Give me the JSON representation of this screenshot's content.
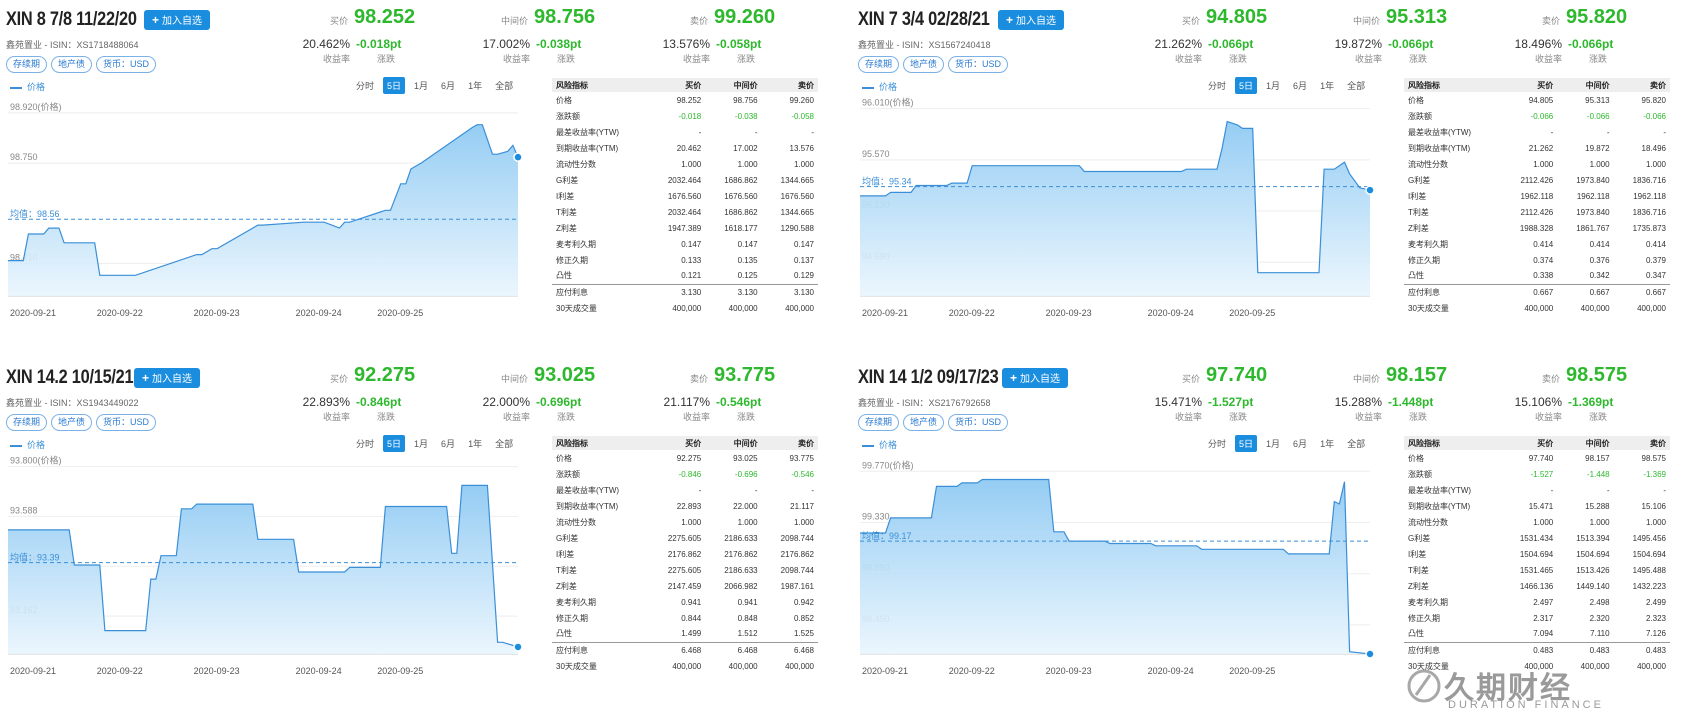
{
  "panels": [
    {
      "title": "XIN 8 7/8 11/22/20",
      "add_button": "加入自选",
      "issuer_isin": "鑫苑置业 - ISIN：XS1718488064",
      "tags": [
        "存续期",
        "地产债",
        "货币：USD"
      ],
      "quotes": [
        {
          "label": "买价",
          "price": "98.252",
          "yield": "20.462%",
          "yield_label": "收益率",
          "change": "-0.018pt",
          "change_label": "涨跌"
        },
        {
          "label": "中间价",
          "price": "98.756",
          "yield": "17.002%",
          "yield_label": "收益率",
          "change": "-0.038pt",
          "change_label": "涨跌"
        },
        {
          "label": "卖价",
          "price": "99.260",
          "yield": "13.576%",
          "yield_label": "收益率",
          "change": "-0.058pt",
          "change_label": "涨跌"
        }
      ],
      "legend": "价格",
      "ranges": [
        "分时",
        "5日",
        "1月",
        "6月",
        "1年",
        "全部"
      ],
      "active_range": "5日",
      "table": {
        "headers": [
          "风险指标",
          "买价",
          "中间价",
          "卖价"
        ],
        "rows": [
          [
            "价格",
            "98.252",
            "98.756",
            "99.260"
          ],
          [
            "涨跌额",
            "-0.018",
            "-0.038",
            "-0.058"
          ],
          [
            "最差收益率(YTW)",
            "-",
            "-",
            "-"
          ],
          [
            "到期收益率(YTM)",
            "20.462",
            "17.002",
            "13.576"
          ],
          [
            "流动性分数",
            "1.000",
            "1.000",
            "1.000"
          ],
          [
            "G利差",
            "2032.464",
            "1686.862",
            "1344.665"
          ],
          [
            "I利差",
            "1676.560",
            "1676.560",
            "1676.560"
          ],
          [
            "T利差",
            "2032.464",
            "1686.862",
            "1344.665"
          ],
          [
            "Z利差",
            "1947.389",
            "1618.177",
            "1290.588"
          ],
          [
            "麦考利久期",
            "0.147",
            "0.147",
            "0.147"
          ],
          [
            "修正久期",
            "0.133",
            "0.135",
            "0.137"
          ],
          [
            "凸性",
            "0.121",
            "0.125",
            "0.129"
          ],
          [
            "应付利息",
            "3.130",
            "3.130",
            "3.130"
          ],
          [
            "30天成交量",
            "400,000",
            "400,000",
            "400,000"
          ]
        ]
      }
    },
    {
      "title": "XIN 7 3/4 02/28/21",
      "add_button": "加入自选",
      "issuer_isin": "鑫苑置业 - ISIN：XS1567240418",
      "tags": [
        "存续期",
        "地产债",
        "货币：USD"
      ],
      "quotes": [
        {
          "label": "买价",
          "price": "94.805",
          "yield": "21.262%",
          "yield_label": "收益率",
          "change": "-0.066pt",
          "change_label": "涨跌"
        },
        {
          "label": "中间价",
          "price": "95.313",
          "yield": "19.872%",
          "yield_label": "收益率",
          "change": "-0.066pt",
          "change_label": "涨跌"
        },
        {
          "label": "卖价",
          "price": "95.820",
          "yield": "18.496%",
          "yield_label": "收益率",
          "change": "-0.066pt",
          "change_label": "涨跌"
        }
      ],
      "legend": "价格",
      "ranges": [
        "分时",
        "5日",
        "1月",
        "6月",
        "1年",
        "全部"
      ],
      "active_range": "5日",
      "table": {
        "headers": [
          "风险指标",
          "买价",
          "中间价",
          "卖价"
        ],
        "rows": [
          [
            "价格",
            "94.805",
            "95.313",
            "95.820"
          ],
          [
            "涨跌额",
            "-0.066",
            "-0.066",
            "-0.066"
          ],
          [
            "最差收益率(YTW)",
            "-",
            "-",
            "-"
          ],
          [
            "到期收益率(YTM)",
            "21.262",
            "19.872",
            "18.496"
          ],
          [
            "流动性分数",
            "1.000",
            "1.000",
            "1.000"
          ],
          [
            "G利差",
            "2112.426",
            "1973.840",
            "1836.716"
          ],
          [
            "I利差",
            "1962.118",
            "1962.118",
            "1962.118"
          ],
          [
            "T利差",
            "2112.426",
            "1973.840",
            "1836.716"
          ],
          [
            "Z利差",
            "1988.328",
            "1861.767",
            "1735.873"
          ],
          [
            "麦考利久期",
            "0.414",
            "0.414",
            "0.414"
          ],
          [
            "修正久期",
            "0.374",
            "0.376",
            "0.379"
          ],
          [
            "凸性",
            "0.338",
            "0.342",
            "0.347"
          ],
          [
            "应付利息",
            "0.667",
            "0.667",
            "0.667"
          ],
          [
            "30天成交量",
            "400,000",
            "400,000",
            "400,000"
          ]
        ]
      }
    },
    {
      "title": "XIN 14.2 10/15/21",
      "add_button": "加入自选",
      "issuer_isin": "鑫苑置业 - ISIN：XS1943449022",
      "tags": [
        "存续期",
        "地产债",
        "货币：USD"
      ],
      "quotes": [
        {
          "label": "买价",
          "price": "92.275",
          "yield": "22.893%",
          "yield_label": "收益率",
          "change": "-0.846pt",
          "change_label": "涨跌"
        },
        {
          "label": "中间价",
          "price": "93.025",
          "yield": "22.000%",
          "yield_label": "收益率",
          "change": "-0.696pt",
          "change_label": "涨跌"
        },
        {
          "label": "卖价",
          "price": "93.775",
          "yield": "21.117%",
          "yield_label": "收益率",
          "change": "-0.546pt",
          "change_label": "涨跌"
        }
      ],
      "legend": "价格",
      "ranges": [
        "分时",
        "5日",
        "1月",
        "6月",
        "1年",
        "全部"
      ],
      "active_range": "5日",
      "table": {
        "headers": [
          "风险指标",
          "买价",
          "中间价",
          "卖价"
        ],
        "rows": [
          [
            "价格",
            "92.275",
            "93.025",
            "93.775"
          ],
          [
            "涨跌额",
            "-0.846",
            "-0.696",
            "-0.546"
          ],
          [
            "最差收益率(YTW)",
            "-",
            "-",
            "-"
          ],
          [
            "到期收益率(YTM)",
            "22.893",
            "22.000",
            "21.117"
          ],
          [
            "流动性分数",
            "1.000",
            "1.000",
            "1.000"
          ],
          [
            "G利差",
            "2275.605",
            "2186.633",
            "2098.744"
          ],
          [
            "I利差",
            "2176.862",
            "2176.862",
            "2176.862"
          ],
          [
            "T利差",
            "2275.605",
            "2186.633",
            "2098.744"
          ],
          [
            "Z利差",
            "2147.459",
            "2066.982",
            "1987.161"
          ],
          [
            "麦考利久期",
            "0.941",
            "0.941",
            "0.942"
          ],
          [
            "修正久期",
            "0.844",
            "0.848",
            "0.852"
          ],
          [
            "凸性",
            "1.499",
            "1.512",
            "1.525"
          ],
          [
            "应付利息",
            "6.468",
            "6.468",
            "6.468"
          ],
          [
            "30天成交量",
            "400,000",
            "400,000",
            "400,000"
          ]
        ]
      }
    },
    {
      "title": "XIN 14 1/2 09/17/23",
      "add_button": "加入自选",
      "issuer_isin": "鑫苑置业 - ISIN：XS2176792658",
      "tags": [
        "存续期",
        "地产债",
        "货币：USD"
      ],
      "quotes": [
        {
          "label": "买价",
          "price": "97.740",
          "yield": "15.471%",
          "yield_label": "收益率",
          "change": "-1.527pt",
          "change_label": "涨跌"
        },
        {
          "label": "中间价",
          "price": "98.157",
          "yield": "15.288%",
          "yield_label": "收益率",
          "change": "-1.448pt",
          "change_label": "涨跌"
        },
        {
          "label": "卖价",
          "price": "98.575",
          "yield": "15.106%",
          "yield_label": "收益率",
          "change": "-1.369pt",
          "change_label": "涨跌"
        }
      ],
      "legend": "价格",
      "ranges": [
        "分时",
        "5日",
        "1月",
        "6月",
        "1年",
        "全部"
      ],
      "active_range": "5日",
      "table": {
        "headers": [
          "风险指标",
          "买价",
          "中间价",
          "卖价"
        ],
        "rows": [
          [
            "价格",
            "97.740",
            "98.157",
            "98.575"
          ],
          [
            "涨跌额",
            "-1.527",
            "-1.448",
            "-1.369"
          ],
          [
            "最差收益率(YTW)",
            "-",
            "-",
            "-"
          ],
          [
            "到期收益率(YTM)",
            "15.471",
            "15.288",
            "15.106"
          ],
          [
            "流动性分数",
            "1.000",
            "1.000",
            "1.000"
          ],
          [
            "G利差",
            "1531.434",
            "1513.394",
            "1495.456"
          ],
          [
            "I利差",
            "1504.694",
            "1504.694",
            "1504.694"
          ],
          [
            "T利差",
            "1531.465",
            "1513.426",
            "1495.488"
          ],
          [
            "Z利差",
            "1466.136",
            "1449.140",
            "1432.223"
          ],
          [
            "麦考利久期",
            "2.497",
            "2.498",
            "2.499"
          ],
          [
            "修正久期",
            "2.317",
            "2.320",
            "2.323"
          ],
          [
            "凸性",
            "7.094",
            "7.110",
            "7.126"
          ],
          [
            "应付利息",
            "0.483",
            "0.483",
            "0.483"
          ],
          [
            "30天成交量",
            "400,000",
            "400,000",
            "400,000"
          ]
        ]
      }
    }
  ],
  "chart_data": [
    {
      "type": "area",
      "series_name": "价格",
      "x_labels": [
        "2020-09-21",
        "2020-09-22",
        "2020-09-23",
        "2020-09-24",
        "2020-09-25"
      ],
      "y_ticks": [
        "98.920(价格)",
        "98.750",
        "98.410"
      ],
      "y_tick_values": [
        98.92,
        98.75,
        98.41
      ],
      "avg_label": "均值：98.56",
      "avg_value": 98.56,
      "ylim": [
        98.3,
        98.95
      ],
      "x": [
        0,
        0.03,
        0.04,
        0.07,
        0.08,
        0.1,
        0.11,
        0.17,
        0.18,
        0.19,
        0.2,
        0.21,
        0.24,
        0.25,
        0.37,
        0.38,
        0.4,
        0.41,
        0.49,
        0.5,
        0.58,
        0.59,
        0.6,
        0.61,
        0.62,
        0.65,
        0.66,
        0.67,
        0.74,
        0.75,
        0.77,
        0.78,
        0.79,
        0.8,
        0.81,
        0.91,
        0.92,
        0.93,
        0.95,
        0.96,
        0.98,
        0.99,
        1.0
      ],
      "y": [
        98.42,
        98.42,
        98.51,
        98.51,
        98.53,
        98.53,
        98.48,
        98.48,
        98.37,
        98.37,
        98.37,
        98.37,
        98.37,
        98.37,
        98.44,
        98.44,
        98.46,
        98.46,
        98.54,
        98.54,
        98.55,
        98.55,
        98.55,
        98.55,
        98.55,
        98.53,
        98.55,
        98.55,
        98.59,
        98.59,
        98.68,
        98.68,
        98.73,
        98.74,
        98.75,
        98.87,
        98.88,
        98.88,
        98.78,
        98.78,
        98.79,
        98.81,
        98.77
      ]
    },
    {
      "type": "area",
      "series_name": "价格",
      "x_labels": [
        "2020-09-21",
        "2020-09-22",
        "2020-09-23",
        "2020-09-24",
        "2020-09-25"
      ],
      "y_ticks": [
        "96.010(价格)",
        "95.570",
        "95.130",
        "94.690"
      ],
      "y_tick_values": [
        96.01,
        95.57,
        95.13,
        94.69
      ],
      "avg_label": "均值：95.34",
      "avg_value": 95.34,
      "ylim": [
        94.4,
        96.05
      ],
      "x": [
        0,
        0.05,
        0.06,
        0.1,
        0.11,
        0.17,
        0.18,
        0.21,
        0.22,
        0.3,
        0.31,
        0.43,
        0.44,
        0.56,
        0.57,
        0.63,
        0.64,
        0.7,
        0.71,
        0.72,
        0.74,
        0.75,
        0.77,
        0.78,
        0.79,
        0.9,
        0.91,
        0.93,
        0.95,
        0.96,
        0.98,
        1.0
      ],
      "y": [
        95.26,
        95.26,
        95.29,
        95.29,
        95.35,
        95.35,
        95.37,
        95.37,
        95.52,
        95.52,
        95.52,
        95.52,
        95.47,
        95.47,
        95.47,
        95.47,
        95.49,
        95.49,
        95.67,
        95.9,
        95.87,
        95.84,
        95.84,
        94.6,
        94.6,
        94.6,
        95.49,
        95.49,
        95.55,
        95.45,
        95.33,
        95.31
      ]
    },
    {
      "type": "area",
      "series_name": "价格",
      "x_labels": [
        "2020-09-21",
        "2020-09-22",
        "2020-09-23",
        "2020-09-24",
        "2020-09-25"
      ],
      "y_ticks": [
        "93.800(价格)",
        "93.588",
        "93.375",
        "93.162"
      ],
      "y_tick_values": [
        93.8,
        93.588,
        93.375,
        93.162
      ],
      "avg_label": "均值：93.39",
      "avg_value": 93.39,
      "ylim": [
        93.0,
        93.82
      ],
      "x": [
        0,
        0.12,
        0.13,
        0.18,
        0.19,
        0.27,
        0.28,
        0.29,
        0.3,
        0.33,
        0.34,
        0.36,
        0.37,
        0.48,
        0.49,
        0.56,
        0.57,
        0.66,
        0.67,
        0.73,
        0.74,
        0.86,
        0.87,
        0.88,
        0.89,
        0.92,
        0.93,
        0.94,
        0.96,
        0.97,
        1.0
      ],
      "y": [
        93.53,
        93.53,
        93.38,
        93.38,
        93.1,
        93.1,
        93.32,
        93.32,
        93.42,
        93.42,
        93.62,
        93.62,
        93.64,
        93.64,
        93.49,
        93.49,
        93.35,
        93.35,
        93.37,
        93.37,
        93.63,
        93.63,
        93.43,
        93.43,
        93.72,
        93.72,
        93.72,
        93.72,
        93.05,
        93.05,
        93.03
      ]
    },
    {
      "type": "area",
      "series_name": "价格",
      "x_labels": [
        "2020-09-21",
        "2020-09-22",
        "2020-09-23",
        "2020-09-24",
        "2020-09-25"
      ],
      "y_ticks": [
        "99.770(价格)",
        "99.330",
        "98.890",
        "98.450"
      ],
      "y_tick_values": [
        99.77,
        99.33,
        98.89,
        98.45
      ],
      "avg_label": "均值：99.17",
      "avg_value": 99.17,
      "ylim": [
        98.2,
        99.85
      ],
      "x": [
        0,
        0.05,
        0.06,
        0.09,
        0.1,
        0.14,
        0.15,
        0.19,
        0.2,
        0.23,
        0.24,
        0.37,
        0.38,
        0.4,
        0.41,
        0.48,
        0.49,
        0.57,
        0.58,
        0.66,
        0.67,
        0.75,
        0.76,
        0.83,
        0.84,
        0.92,
        0.93,
        0.94,
        0.95,
        0.96,
        1.0
      ],
      "y": [
        99.24,
        99.24,
        99.37,
        99.37,
        99.37,
        99.37,
        99.64,
        99.64,
        99.67,
        99.67,
        99.7,
        99.7,
        99.25,
        99.25,
        99.17,
        99.17,
        99.15,
        99.15,
        99.13,
        99.13,
        99.1,
        99.1,
        99.1,
        99.1,
        99.06,
        99.06,
        99.51,
        99.49,
        99.68,
        98.22,
        98.2
      ]
    }
  ],
  "watermark": {
    "main": "久期财经",
    "sub": "DURATION FINANCE"
  }
}
